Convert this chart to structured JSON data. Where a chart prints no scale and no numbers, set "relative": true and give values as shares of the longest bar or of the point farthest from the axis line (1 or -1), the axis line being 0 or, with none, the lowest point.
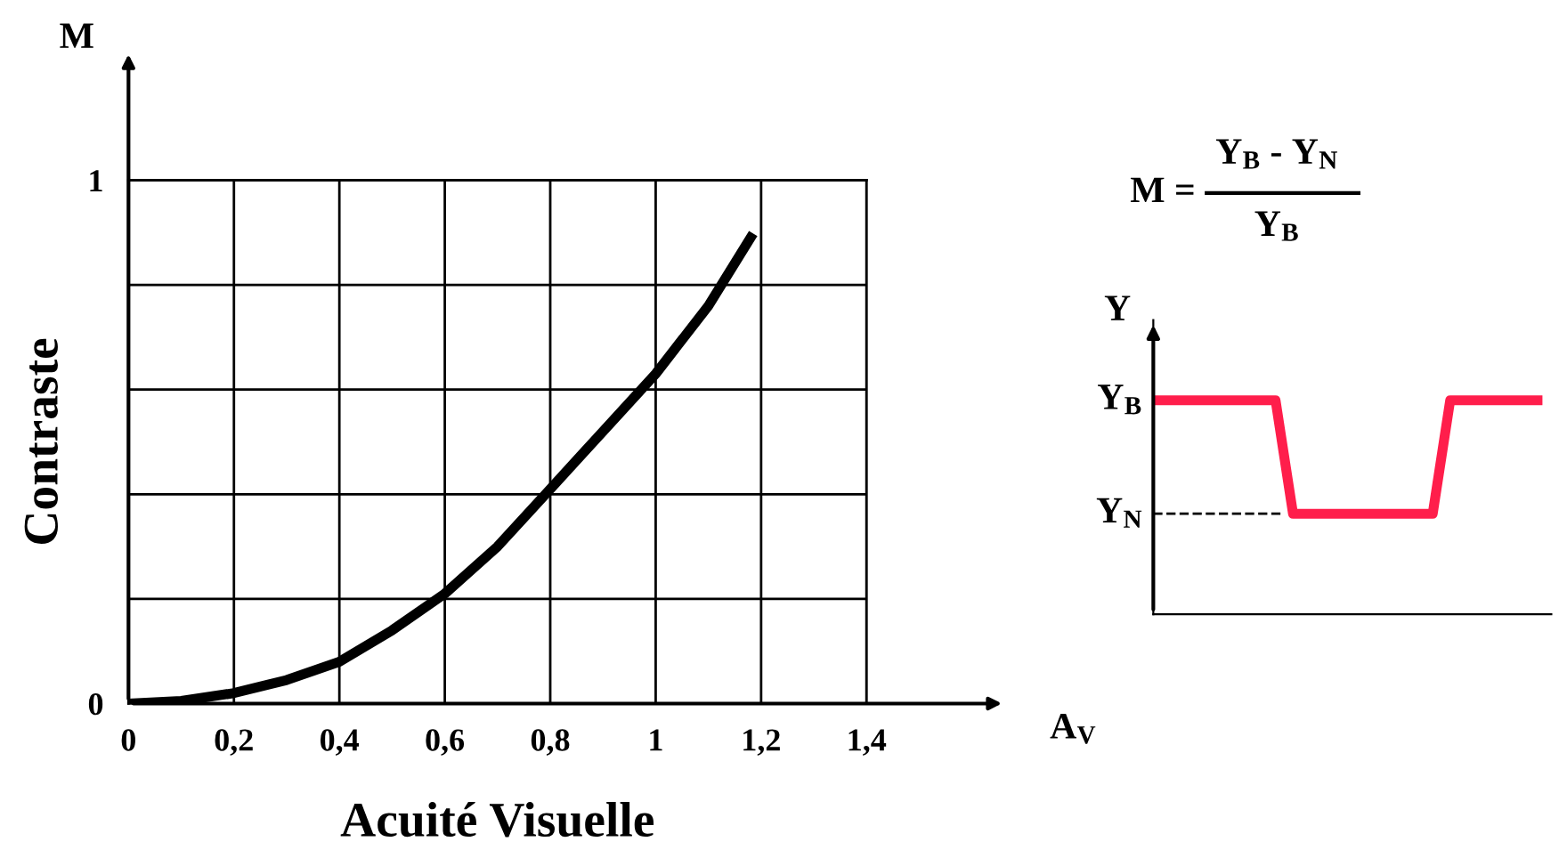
{
  "chart_data": [
    {
      "type": "line",
      "xlabel": "Acuité Visuelle",
      "ylabel": "Contraste",
      "annotations": [
        "M",
        "A$_{V}$"
      ],
      "x": [
        0,
        0.1,
        0.2,
        0.3,
        0.4,
        0.5,
        0.6,
        0.7,
        0.8,
        0.9,
        1.0,
        1.1,
        1.18
      ],
      "series": [
        {
          "color": "#000000",
          "values": [
            0,
            0.005,
            0.02,
            0.045,
            0.08,
            0.14,
            0.21,
            0.3,
            0.41,
            0.52,
            0.63,
            0.76,
            0.89
          ]
        }
      ],
      "xlim": [
        0,
        1.4
      ],
      "ylim": [
        0,
        1
      ],
      "xticks": [
        0,
        {
          "value": 0.2,
          "label": "0,2"
        },
        {
          "value": 0.4,
          "label": "0,4"
        },
        {
          "value": 0.6,
          "label": "0,6"
        },
        {
          "value": 0.8,
          "label": "0,8"
        },
        1,
        {
          "value": 1.2,
          "label": "1,2"
        },
        {
          "value": 1.4,
          "label": "1,4"
        }
      ],
      "yticks": [
        0,
        {
          "value": 0.2,
          "label": null
        },
        {
          "value": 0.4,
          "label": null
        },
        {
          "value": 0.6,
          "label": null
        },
        {
          "value": 0.8,
          "label": null
        },
        1
      ],
      "grid": true,
      "legend": false,
      "marker": "none",
      "line_style": "solid"
    },
    {
      "type": "line",
      "relative": true,
      "title": "M = ",
      "subtitle": "Y$_{B}$ - Y$_{N}$",
      "annotations": [
        "Y$_{B}$",
        "Y",
        "Y$_{B}$",
        "Y$_{N}$"
      ],
      "categories": [
        null,
        null,
        null,
        null,
        null,
        null,
        null,
        null,
        null,
        null,
        null,
        null,
        null,
        null,
        null,
        null,
        null,
        null,
        null,
        null,
        null,
        null,
        null
      ],
      "series": [
        {
          "color": "#ff1e4b",
          "values": [
            1,
            1,
            1,
            1,
            1,
            1,
            1,
            1,
            0.47,
            0.47,
            0.47,
            0.47,
            0.47,
            0.47,
            0.47,
            0.47,
            0.47,
            1,
            1,
            1,
            1,
            1,
            1
          ]
        }
      ],
      "ref_lines": [
        {
          "axis": "y",
          "value": 0.47,
          "color": "#000000",
          "line_style": "dashed"
        }
      ],
      "legend": false,
      "grid": false,
      "marker": "none",
      "line_style": "solid"
    }
  ]
}
